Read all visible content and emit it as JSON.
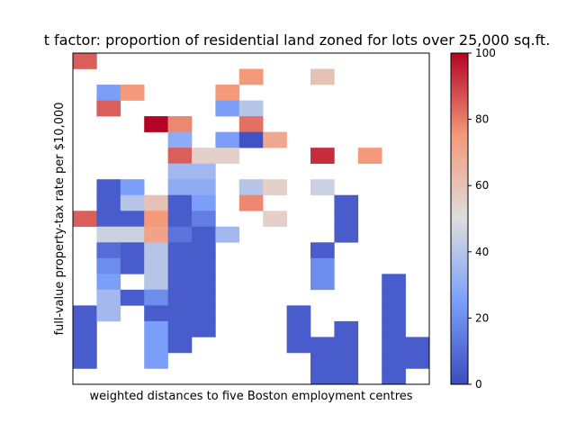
{
  "chart_data": {
    "type": "heatmap",
    "title": "... factor: proportion of residential land zoned for lots over 25,000 sq.ft.",
    "title_visible": "t factor: proportion of residential land zoned for lots over 25,000 sq.ft.",
    "xlabel": "weighted distances to five Boston employment centres",
    "ylabel": "full-value property-tax rate per $10,000",
    "colormap": "coolwarm",
    "colorbar": {
      "ticks": [
        "0",
        "20",
        "40",
        "60",
        "80",
        "100"
      ],
      "range": [
        0,
        100
      ],
      "low_color": "#3b4cc0",
      "high_color": "#b40426"
    },
    "grid_shape": [
      21,
      15
    ],
    "note": "rows listed top to bottom; null = empty cell",
    "cells": [
      [
        {
          "r": 0,
          "c": 0,
          "v": 85
        }
      ],
      [
        {
          "r": 1,
          "c": 7,
          "v": 75
        },
        {
          "r": 1,
          "c": 10,
          "v": 60
        }
      ],
      [
        {
          "r": 2,
          "c": 1,
          "v": 25
        },
        {
          "r": 2,
          "c": 2,
          "v": 75
        },
        {
          "r": 2,
          "c": 6,
          "v": 75
        }
      ],
      [
        {
          "r": 3,
          "c": 1,
          "v": 85
        },
        {
          "r": 3,
          "c": 6,
          "v": 25
        },
        {
          "r": 3,
          "c": 7,
          "v": 40
        }
      ],
      [
        {
          "r": 4,
          "c": 3,
          "v": 100
        },
        {
          "r": 4,
          "c": 4,
          "v": 78
        },
        {
          "r": 4,
          "c": 7,
          "v": 82
        }
      ],
      [
        {
          "r": 5,
          "c": 4,
          "v": 30
        },
        {
          "r": 5,
          "c": 6,
          "v": 25
        },
        {
          "r": 5,
          "c": 7,
          "v": 2
        },
        {
          "r": 5,
          "c": 8,
          "v": 70
        }
      ],
      [
        {
          "r": 6,
          "c": 4,
          "v": 85
        },
        {
          "r": 6,
          "c": 5,
          "v": 55
        },
        {
          "r": 6,
          "c": 6,
          "v": 55
        },
        {
          "r": 6,
          "c": 10,
          "v": 93
        },
        {
          "r": 6,
          "c": 12,
          "v": 75
        }
      ],
      [
        {
          "r": 7,
          "c": 4,
          "v": 35
        },
        {
          "r": 7,
          "c": 5,
          "v": 35
        }
      ],
      [
        {
          "r": 8,
          "c": 1,
          "v": 5
        },
        {
          "r": 8,
          "c": 2,
          "v": 25
        },
        {
          "r": 8,
          "c": 4,
          "v": 30
        },
        {
          "r": 8,
          "c": 5,
          "v": 30
        },
        {
          "r": 8,
          "c": 7,
          "v": 40
        },
        {
          "r": 8,
          "c": 8,
          "v": 55
        },
        {
          "r": 8,
          "c": 10,
          "v": 45
        }
      ],
      [
        {
          "r": 9,
          "c": 1,
          "v": 5
        },
        {
          "r": 9,
          "c": 2,
          "v": 40
        },
        {
          "r": 9,
          "c": 3,
          "v": 60
        },
        {
          "r": 9,
          "c": 4,
          "v": 5
        },
        {
          "r": 9,
          "c": 5,
          "v": 25
        },
        {
          "r": 9,
          "c": 7,
          "v": 78
        },
        {
          "r": 9,
          "c": 11,
          "v": 5
        }
      ],
      [
        {
          "r": 10,
          "c": 0,
          "v": 85
        },
        {
          "r": 10,
          "c": 1,
          "v": 5
        },
        {
          "r": 10,
          "c": 2,
          "v": 5
        },
        {
          "r": 10,
          "c": 3,
          "v": 75
        },
        {
          "r": 10,
          "c": 4,
          "v": 5
        },
        {
          "r": 10,
          "c": 5,
          "v": 15
        },
        {
          "r": 10,
          "c": 8,
          "v": 55
        },
        {
          "r": 10,
          "c": 11,
          "v": 5
        }
      ],
      [
        {
          "r": 11,
          "c": 1,
          "v": 45
        },
        {
          "r": 11,
          "c": 2,
          "v": 45
        },
        {
          "r": 11,
          "c": 3,
          "v": 72
        },
        {
          "r": 11,
          "c": 4,
          "v": 12
        },
        {
          "r": 11,
          "c": 5,
          "v": 5
        },
        {
          "r": 11,
          "c": 6,
          "v": 35
        },
        {
          "r": 11,
          "c": 11,
          "v": 5
        }
      ],
      [
        {
          "r": 12,
          "c": 1,
          "v": 10
        },
        {
          "r": 12,
          "c": 2,
          "v": 5
        },
        {
          "r": 12,
          "c": 3,
          "v": 40
        },
        {
          "r": 12,
          "c": 4,
          "v": 5
        },
        {
          "r": 12,
          "c": 5,
          "v": 5
        },
        {
          "r": 12,
          "c": 10,
          "v": 5
        }
      ],
      [
        {
          "r": 13,
          "c": 1,
          "v": 20
        },
        {
          "r": 13,
          "c": 2,
          "v": 5
        },
        {
          "r": 13,
          "c": 3,
          "v": 40
        },
        {
          "r": 13,
          "c": 4,
          "v": 5
        },
        {
          "r": 13,
          "c": 5,
          "v": 5
        },
        {
          "r": 13,
          "c": 10,
          "v": 20
        }
      ],
      [
        {
          "r": 14,
          "c": 1,
          "v": 25
        },
        {
          "r": 14,
          "c": 3,
          "v": 40
        },
        {
          "r": 14,
          "c": 4,
          "v": 5
        },
        {
          "r": 14,
          "c": 5,
          "v": 5
        },
        {
          "r": 14,
          "c": 10,
          "v": 20
        },
        {
          "r": 14,
          "c": 13,
          "v": 5
        }
      ],
      [
        {
          "r": 15,
          "c": 1,
          "v": 35
        },
        {
          "r": 15,
          "c": 2,
          "v": 5
        },
        {
          "r": 15,
          "c": 3,
          "v": 20
        },
        {
          "r": 15,
          "c": 4,
          "v": 5
        },
        {
          "r": 15,
          "c": 5,
          "v": 5
        },
        {
          "r": 15,
          "c": 13,
          "v": 5
        }
      ],
      [
        {
          "r": 16,
          "c": 0,
          "v": 5
        },
        {
          "r": 16,
          "c": 1,
          "v": 35
        },
        {
          "r": 16,
          "c": 3,
          "v": 5
        },
        {
          "r": 16,
          "c": 4,
          "v": 5
        },
        {
          "r": 16,
          "c": 5,
          "v": 5
        },
        {
          "r": 16,
          "c": 9,
          "v": 5
        },
        {
          "r": 16,
          "c": 13,
          "v": 5
        }
      ],
      [
        {
          "r": 17,
          "c": 0,
          "v": 5
        },
        {
          "r": 17,
          "c": 3,
          "v": 25
        },
        {
          "r": 17,
          "c": 4,
          "v": 5
        },
        {
          "r": 17,
          "c": 5,
          "v": 5
        },
        {
          "r": 17,
          "c": 9,
          "v": 5
        },
        {
          "r": 17,
          "c": 11,
          "v": 5
        },
        {
          "r": 17,
          "c": 13,
          "v": 5
        }
      ],
      [
        {
          "r": 18,
          "c": 0,
          "v": 5
        },
        {
          "r": 18,
          "c": 3,
          "v": 25
        },
        {
          "r": 18,
          "c": 4,
          "v": 5
        },
        {
          "r": 18,
          "c": 9,
          "v": 5
        },
        {
          "r": 18,
          "c": 10,
          "v": 5
        },
        {
          "r": 18,
          "c": 11,
          "v": 5
        },
        {
          "r": 18,
          "c": 13,
          "v": 5
        },
        {
          "r": 18,
          "c": 14,
          "v": 5
        }
      ],
      [
        {
          "r": 19,
          "c": 0,
          "v": 5
        },
        {
          "r": 19,
          "c": 3,
          "v": 25
        },
        {
          "r": 19,
          "c": 10,
          "v": 5
        },
        {
          "r": 19,
          "c": 11,
          "v": 5
        },
        {
          "r": 19,
          "c": 13,
          "v": 5
        },
        {
          "r": 19,
          "c": 14,
          "v": 5
        }
      ],
      [
        {
          "r": 20,
          "c": 10,
          "v": 5
        },
        {
          "r": 20,
          "c": 11,
          "v": 5
        },
        {
          "r": 20,
          "c": 13,
          "v": 5
        }
      ]
    ]
  }
}
